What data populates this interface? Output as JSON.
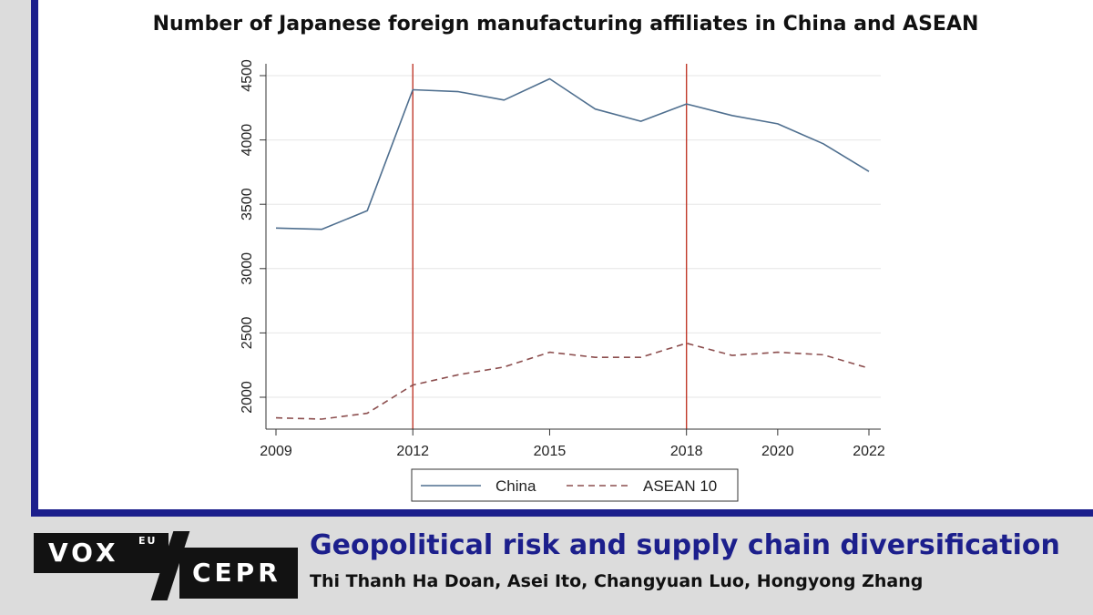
{
  "chart_data": {
    "type": "line",
    "title": "Number of Japanese foreign manufacturing affiliates in China and ASEAN",
    "xlabel": "",
    "ylabel": "",
    "x": [
      2009,
      2010,
      2011,
      2012,
      2013,
      2014,
      2015,
      2016,
      2017,
      2018,
      2019,
      2020,
      2021,
      2022
    ],
    "series": [
      {
        "name": "China",
        "color": "#4f6f8f",
        "style": "solid",
        "values": [
          3315,
          3305,
          3450,
          4390,
          4375,
          4310,
          4475,
          4240,
          4145,
          4280,
          4190,
          4125,
          3970,
          3755
        ]
      },
      {
        "name": "ASEAN 10",
        "color": "#8c4e4e",
        "style": "dashed",
        "values": [
          1840,
          1830,
          1875,
          2095,
          2175,
          2235,
          2350,
          2310,
          2310,
          2420,
          2325,
          2350,
          2330,
          2225
        ]
      }
    ],
    "x_ticks": [
      "2009",
      "2012",
      "2015",
      "2018",
      "2020",
      "2022"
    ],
    "y_ticks": [
      "2000",
      "2500",
      "3000",
      "3500",
      "4000",
      "4500"
    ],
    "xlim": [
      2009,
      2022
    ],
    "ylim": [
      1750,
      4600
    ],
    "vlines": [
      2012,
      2018
    ],
    "vline_color": "#c0392b",
    "grid": true,
    "legend_position": "bottom-center"
  },
  "footer": {
    "logo_vox": "VOX",
    "logo_eu": "EU",
    "logo_cepr": "CEPR",
    "article_title": "Geopolitical risk and supply chain diversification",
    "authors": "Thi Thanh Ha Doan, Asei Ito, Changyuan Luo, Hongyong Zhang"
  },
  "colors": {
    "accent": "#1c1f8c",
    "background": "#dcdcdc"
  }
}
